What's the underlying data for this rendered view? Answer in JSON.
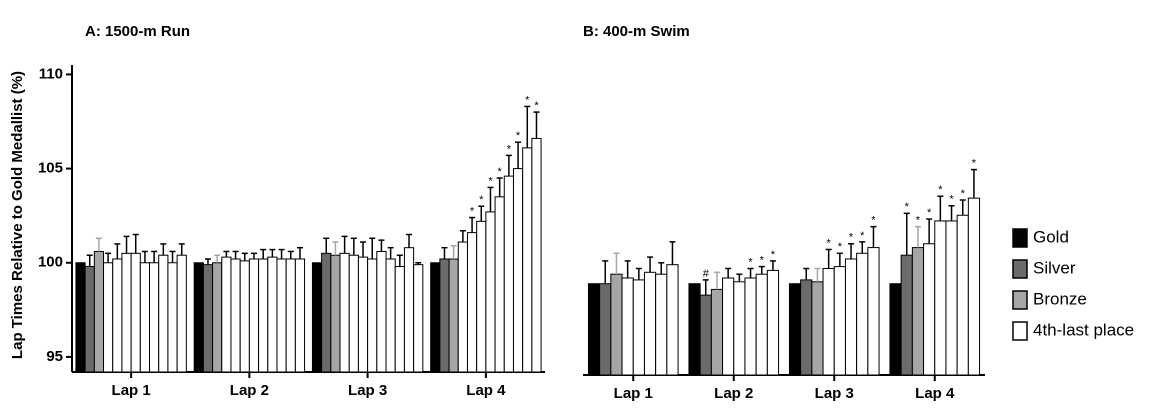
{
  "chart_data": [
    {
      "type": "bar",
      "title": "A: 1500-m Run",
      "y_label": "Lap Times Relative to Gold  Medallist  (%)",
      "categories": [
        "Lap 1",
        "Lap 2",
        "Lap 3",
        "Lap 4"
      ],
      "ylim": [
        94.2,
        110.5
      ],
      "yticks": [
        95,
        100,
        105,
        110
      ],
      "series": [
        {
          "color": "#000000",
          "values": [
            100,
            100,
            100,
            100
          ]
        },
        {
          "color": "#6b6b6b",
          "values": [
            99.8,
            99.9,
            100.5,
            100.2
          ],
          "errors": [
            0.6,
            0.3,
            0.8,
            0.6
          ]
        },
        {
          "color": "#a6a6a6",
          "values": [
            100.6,
            100.0,
            100.4,
            100.2
          ],
          "errors": [
            0.7,
            0.4,
            0.7,
            0.7
          ]
        },
        {
          "color": "#ffffff",
          "values": [
            [
              100.0,
              100.2,
              100.5,
              100.5,
              100.0,
              100.0,
              100.4,
              100.0,
              100.4
            ],
            [
              100.3,
              100.2,
              100.1,
              100.2,
              100.2,
              100.3,
              100.2,
              100.2,
              100.2
            ],
            [
              100.5,
              100.4,
              100.3,
              100.2,
              100.6,
              100.2,
              99.8,
              100.8,
              99.9
            ],
            [
              101.1,
              101.6,
              102.2,
              102.7,
              103.5,
              104.6,
              105.0,
              106.1,
              106.6
            ]
          ],
          "errors": [
            [
              0.5,
              0.8,
              0.9,
              1.0,
              0.6,
              0.6,
              0.6,
              0.6,
              0.6
            ],
            [
              0.3,
              0.4,
              0.4,
              0.3,
              0.5,
              0.4,
              0.5,
              0.4,
              0.6
            ],
            [
              0.9,
              0.9,
              0.8,
              1.1,
              0.6,
              0.6,
              0.6,
              0.7,
              0.1
            ],
            [
              0.6,
              0.8,
              0.8,
              1.3,
              1.0,
              1.1,
              1.4,
              2.2,
              1.4
            ]
          ],
          "markers": [
            [
              null,
              null,
              null,
              null,
              null,
              null,
              null,
              null,
              null
            ],
            [
              null,
              null,
              null,
              null,
              null,
              null,
              null,
              null,
              null
            ],
            [
              null,
              null,
              null,
              null,
              null,
              null,
              null,
              null,
              null
            ],
            [
              null,
              "*",
              "*",
              "*",
              "*",
              "*",
              "*",
              "*",
              "*"
            ]
          ]
        }
      ]
    },
    {
      "type": "bar",
      "title": "B: 400-m  Swim",
      "categories": [
        "Lap 1",
        "Lap 2",
        "Lap 3",
        "Lap 4"
      ],
      "ylim": [
        94.2,
        110.5
      ],
      "legend": "right",
      "series": [
        {
          "name": "Gold",
          "color": "#000000",
          "values": [
            99.0,
            99.0,
            99.0,
            99.0
          ]
        },
        {
          "name": "Silver",
          "color": "#6b6b6b",
          "values": [
            99.0,
            98.4,
            99.2,
            100.5
          ],
          "errors": [
            1.2,
            0.8,
            0.6,
            2.2
          ],
          "markers": [
            null,
            "#",
            null,
            "*"
          ]
        },
        {
          "name": "Bronze",
          "color": "#a6a6a6",
          "values": [
            99.5,
            98.7,
            99.1,
            100.9
          ],
          "errors": [
            1.1,
            0.9,
            0.7,
            1.1
          ],
          "markers": [
            null,
            null,
            null,
            "*"
          ]
        },
        {
          "name": "4th-last place",
          "color": "#ffffff",
          "values": [
            [
              99.3,
              99.2,
              99.6,
              99.5,
              100.0
            ],
            [
              99.3,
              99.1,
              99.3,
              99.5,
              99.7
            ],
            [
              99.8,
              99.9,
              100.3,
              100.6,
              100.9
            ],
            [
              101.1,
              102.3,
              102.3,
              102.6,
              103.5
            ]
          ],
          "errors": [
            [
              0.9,
              0.6,
              0.8,
              0.6,
              1.2
            ],
            [
              0.5,
              0.4,
              0.5,
              0.4,
              0.5
            ],
            [
              1.0,
              0.7,
              0.8,
              0.6,
              1.1
            ],
            [
              1.3,
              1.3,
              0.8,
              0.8,
              1.5
            ]
          ],
          "markers": [
            [
              null,
              null,
              null,
              null,
              null
            ],
            [
              null,
              null,
              "*",
              "*",
              "*"
            ],
            [
              "*",
              "*",
              "*",
              "*",
              "*"
            ],
            [
              "*",
              "*",
              "*",
              "*",
              "*"
            ]
          ]
        }
      ]
    }
  ]
}
